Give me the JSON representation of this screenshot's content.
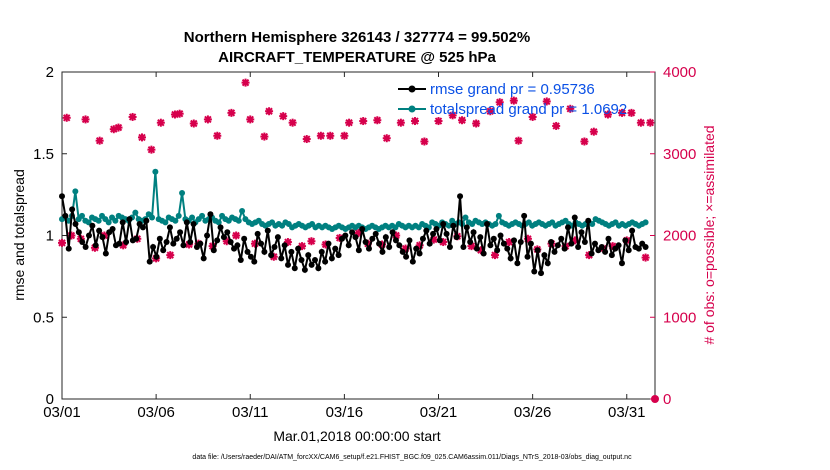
{
  "chart_data": {
    "type": "line",
    "title": "Northern Hemisphere 326143 / 327774 = 99.502%",
    "subtitle": "AIRCRAFT_TEMPERATURE @ 525 hPa",
    "xlabel": "Mar.01,2018 00:00:00 start",
    "ylabel": "rmse and totalspread",
    "y2label": "# of obs: o=possible; ×=assimilated",
    "xlim": [
      0,
      31.5
    ],
    "ylim": [
      0,
      2
    ],
    "y2lim": [
      0,
      4000
    ],
    "x_ticks": [
      0,
      5,
      10,
      15,
      20,
      25,
      30
    ],
    "x_tick_labels": [
      "03/01",
      "03/06",
      "03/11",
      "03/16",
      "03/21",
      "03/26",
      "03/31"
    ],
    "y_tick_labels": [
      "0",
      "0.5",
      "1",
      "1.5",
      "2"
    ],
    "y2_tick_labels": [
      "0",
      "1000",
      "2000",
      "3000",
      "4000"
    ],
    "colors": {
      "rmse": "#000000",
      "spread": "#008080",
      "obs": "#d6004c",
      "legend_text": "#0a50e6"
    },
    "legend_location": "top-right",
    "series": [
      {
        "name": "rmse grand pr = 0.95736",
        "axis": "left",
        "marker": "dot",
        "values": [
          1.24,
          1.12,
          0.92,
          1.16,
          1.07,
          1.02,
          0.96,
          0.93,
          1.0,
          1.06,
          0.94,
          1.03,
          0.99,
          0.89,
          1.02,
          1.04,
          0.94,
          0.95,
          1.08,
          0.96,
          1.1,
          0.97,
          0.98,
          1.07,
          1.05,
          1.09,
          0.84,
          0.93,
          0.87,
          0.98,
          0.91,
          0.96,
          1.05,
          0.95,
          0.98,
          1.02,
          0.94,
          1.08,
          0.96,
          1.07,
          0.93,
          0.95,
          0.86,
          1.0,
          1.13,
          0.91,
          0.97,
          1.05,
          0.99,
          1.02,
          0.96,
          0.92,
          0.94,
          0.85,
          0.98,
          0.9,
          0.87,
          0.84,
          1.01,
          0.95,
          0.9,
          1.03,
          0.88,
          0.93,
          0.99,
          0.86,
          0.94,
          0.82,
          0.9,
          0.8,
          0.92,
          0.85,
          0.79,
          0.88,
          0.82,
          0.85,
          0.8,
          0.9,
          0.84,
          0.95,
          0.86,
          0.92,
          0.88,
          0.98,
          1.0,
          0.94,
          1.02,
          0.99,
          0.91,
          1.04,
          0.96,
          0.92,
          0.98,
          1.01,
          0.95,
          0.9,
          0.99,
          0.93,
          1.02,
          0.97,
          0.94,
          0.9,
          0.87,
          0.97,
          0.84,
          0.92,
          0.89,
          0.98,
          1.03,
          0.95,
          1.01,
          1.04,
          0.97,
          1.07,
          1.01,
          0.93,
          1.06,
          0.99,
          1.24,
          0.93,
          1.05,
          0.96,
          1.02,
          0.92,
          0.99,
          0.89,
          1.07,
          0.94,
          0.98,
          0.91,
          1.0,
          0.95,
          0.92,
          0.86,
          0.97,
          0.83,
          0.96,
          1.12,
          0.87,
          0.95,
          0.78,
          0.91,
          0.77,
          0.88,
          0.83,
          0.96,
          0.9,
          0.94,
          0.98,
          0.92,
          1.05,
          0.95,
          1.11,
          0.93,
          1.02,
          0.96,
          1.09,
          0.89,
          0.95,
          0.91,
          0.93,
          0.9,
          0.98,
          0.88,
          0.92,
          0.94,
          0.83,
          0.97,
          0.91,
          1.03,
          0.93,
          0.92,
          0.95,
          0.93
        ]
      },
      {
        "name": "totalspread grand pr = 1.0692",
        "axis": "left",
        "marker": "dot",
        "values": [
          1.1,
          1.11,
          1.09,
          1.12,
          1.27,
          1.1,
          1.12,
          1.09,
          1.08,
          1.11,
          1.1,
          1.09,
          1.12,
          1.1,
          1.08,
          1.11,
          1.09,
          1.12,
          1.11,
          1.1,
          1.09,
          1.11,
          1.14,
          1.1,
          1.09,
          1.1,
          1.13,
          1.11,
          1.39,
          1.1,
          1.09,
          1.08,
          1.11,
          1.1,
          1.09,
          1.12,
          1.26,
          1.1,
          1.09,
          1.11,
          1.08,
          1.1,
          1.12,
          1.09,
          1.1,
          1.11,
          1.09,
          1.08,
          1.12,
          1.1,
          1.09,
          1.11,
          1.1,
          1.09,
          1.15,
          1.1,
          1.08,
          1.07,
          1.08,
          1.09,
          1.07,
          1.06,
          1.07,
          1.08,
          1.06,
          1.07,
          1.06,
          1.08,
          1.07,
          1.05,
          1.06,
          1.07,
          1.06,
          1.05,
          1.06,
          1.07,
          1.05,
          1.06,
          1.05,
          1.06,
          1.05,
          1.04,
          1.05,
          1.06,
          1.05,
          1.04,
          1.05,
          1.06,
          1.05,
          1.06,
          1.05,
          1.04,
          1.05,
          1.06,
          1.05,
          1.04,
          1.05,
          1.06,
          1.05,
          1.06,
          1.05,
          1.07,
          1.06,
          1.05,
          1.06,
          1.05,
          1.06,
          1.05,
          1.07,
          1.06,
          1.05,
          1.08,
          1.07,
          1.06,
          1.08,
          1.07,
          1.06,
          1.09,
          1.07,
          1.08,
          1.07,
          1.11,
          1.08,
          1.07,
          1.09,
          1.08,
          1.07,
          1.08,
          1.07,
          1.06,
          1.07,
          1.12,
          1.08,
          1.07,
          1.06,
          1.07,
          1.08,
          1.07,
          1.06,
          1.07,
          1.08,
          1.06,
          1.07,
          1.08,
          1.07,
          1.06,
          1.07,
          1.08,
          1.06,
          1.07,
          1.08,
          1.09,
          1.07,
          1.06,
          1.08,
          1.07,
          1.06,
          1.07,
          1.08,
          1.07,
          1.1,
          1.09,
          1.08,
          1.07,
          1.06,
          1.07,
          1.08,
          1.06,
          1.07,
          1.06,
          1.07,
          1.08,
          1.07,
          1.06,
          1.07,
          1.08
        ]
      },
      {
        "name": "obs possible / assimilated",
        "axis": "right",
        "marker": "star",
        "x": [
          0.0,
          0.25,
          0.5,
          1.0,
          1.25,
          1.75,
          2.0,
          2.25,
          2.75,
          3.0,
          3.25,
          3.75,
          4.0,
          4.25,
          4.75,
          5.0,
          5.25,
          5.75,
          6.0,
          6.25,
          6.75,
          7.0,
          7.25,
          7.75,
          8.0,
          8.25,
          8.75,
          9.0,
          9.25,
          9.75,
          10.0,
          10.25,
          10.75,
          11.0,
          11.25,
          11.75,
          12.0,
          12.25,
          12.75,
          13.0,
          13.25,
          13.75,
          14.0,
          14.25,
          14.75,
          15.0,
          15.25,
          15.75,
          16.0,
          16.25,
          16.75,
          17.0,
          17.25,
          17.75,
          18.0,
          18.25,
          18.75,
          19.0,
          19.25,
          19.75,
          20.0,
          20.25,
          20.75,
          21.0,
          21.25,
          21.75,
          22.0,
          22.25,
          22.75,
          23.0,
          23.25,
          23.75,
          24.0,
          24.25,
          24.75,
          25.0,
          25.25,
          25.75,
          26.0,
          26.25,
          26.75,
          27.0,
          27.25,
          27.75,
          28.0,
          28.25,
          28.75,
          29.0,
          29.25,
          29.75,
          30.0,
          30.25,
          30.75,
          31.0,
          31.25
        ],
        "values": [
          1910,
          3440,
          2000,
          1960,
          3420,
          1850,
          3160,
          2000,
          3300,
          3320,
          1880,
          3450,
          1960,
          3200,
          3050,
          1720,
          3380,
          1760,
          3480,
          3490,
          1890,
          3370,
          1900,
          3420,
          1870,
          3220,
          1930,
          3500,
          2000,
          3870,
          3420,
          1900,
          3210,
          3520,
          1740,
          3460,
          1920,
          3380,
          1870,
          3180,
          1930,
          3220,
          1890,
          3220,
          1970,
          3220,
          3380,
          2030,
          3400,
          1900,
          3410,
          1890,
          3190,
          2000,
          3380,
          1840,
          3400,
          1880,
          3150,
          1950,
          3400,
          1920,
          3470,
          1990,
          3410,
          1870,
          3370,
          1820,
          3520,
          1760,
          3630,
          1920,
          3650,
          3160,
          1960,
          3450,
          1830,
          3640,
          1900,
          3340,
          1870,
          3550,
          1940,
          3150,
          1760,
          3270,
          1840,
          3480,
          1870,
          3500,
          1940,
          3500,
          3380,
          1730,
          3380
        ]
      }
    ]
  },
  "footer": "data file: /Users/raeder/DAI/ATM_forcXX/CAM6_setup/f.e21.FHIST_BGC.f09_025.CAM6assim.011/Diags_NTrS_2018-03/obs_diag_output.nc"
}
